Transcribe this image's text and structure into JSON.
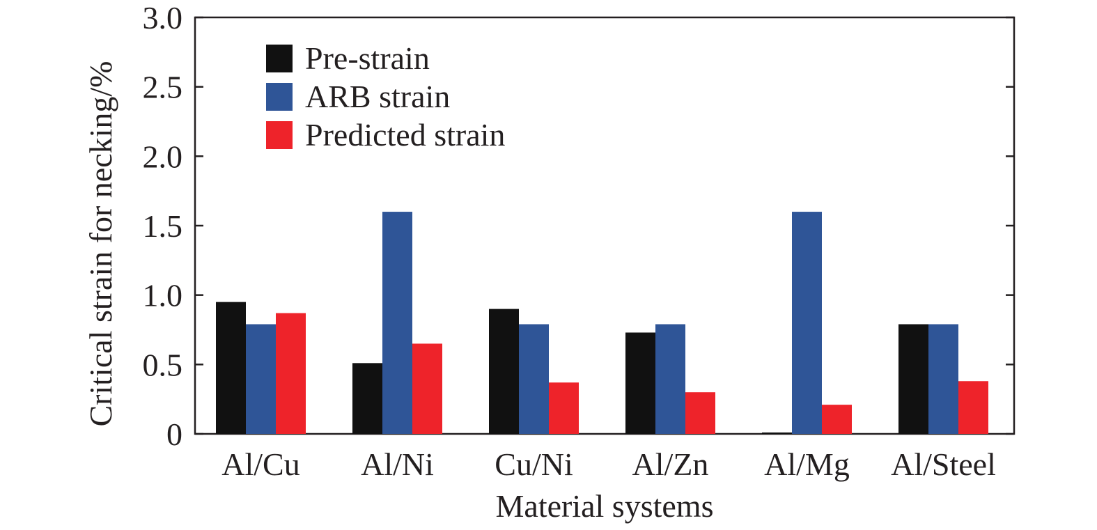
{
  "chart_data": {
    "type": "bar",
    "title": "",
    "xlabel": "Material systems",
    "ylabel": "Critical strain for necking/%",
    "categories": [
      "Al/Cu",
      "Al/Ni",
      "Cu/Ni",
      "Al/Zn",
      "Al/Mg",
      "Al/Steel"
    ],
    "series": [
      {
        "name": "Pre-strain",
        "color": "#111111",
        "values": [
          0.95,
          0.51,
          0.9,
          0.73,
          0.01,
          0.79
        ]
      },
      {
        "name": "ARB strain",
        "color": "#2f5597",
        "values": [
          0.79,
          1.6,
          0.79,
          0.79,
          1.6,
          0.79
        ]
      },
      {
        "name": "Predicted strain",
        "color": "#ee232a",
        "values": [
          0.87,
          0.65,
          0.37,
          0.3,
          0.21,
          0.38
        ]
      }
    ],
    "ylim": [
      0,
      3.0
    ],
    "yticks": [
      "0",
      "0.5",
      "1.0",
      "1.5",
      "2.0",
      "2.5",
      "3.0"
    ],
    "grid": false,
    "legend_position": "top-left"
  }
}
